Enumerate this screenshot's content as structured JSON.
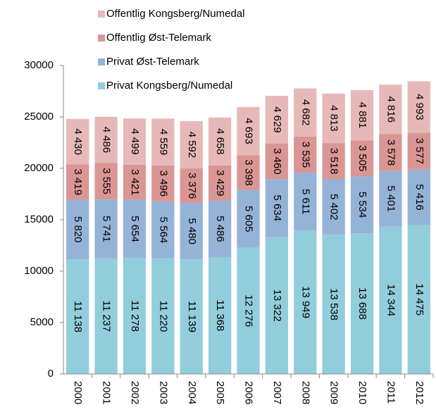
{
  "chart_data": {
    "type": "stacked_bar",
    "categories": [
      "2000",
      "2001",
      "2002",
      "2003",
      "2004",
      "2005",
      "2006",
      "2007",
      "2008",
      "2009",
      "2010",
      "2011",
      "2012"
    ],
    "series": [
      {
        "name": "Privat Kongsberg/Numedal",
        "color": "#92cddc",
        "values": [
          11138,
          11237,
          11278,
          11220,
          11139,
          11368,
          12276,
          13322,
          13949,
          13538,
          13688,
          14344,
          14475
        ],
        "value_labels": [
          "11 138",
          "11 237",
          "11 278",
          "11 220",
          "11 139",
          "11 368",
          "12 276",
          "13 322",
          "13 949",
          "13 538",
          "13 688",
          "14 344",
          "14 475"
        ]
      },
      {
        "name": "Privat Øst-Telemark",
        "color": "#95b3d7",
        "values": [
          5820,
          5741,
          5654,
          5564,
          5480,
          5486,
          5605,
          5634,
          5611,
          5402,
          5534,
          5401,
          5416
        ],
        "value_labels": [
          "5 820",
          "5 741",
          "5 654",
          "5 564",
          "5 480",
          "5 486",
          "5 605",
          "5 634",
          "5 611",
          "5 402",
          "5 534",
          "5 401",
          "5 416"
        ]
      },
      {
        "name": "Offentlig Øst-Telemark",
        "color": "#d99694",
        "values": [
          3419,
          3555,
          3421,
          3496,
          3376,
          3429,
          3398,
          3460,
          3535,
          3518,
          3505,
          3578,
          3577
        ],
        "value_labels": [
          "3 419",
          "3 555",
          "3 421",
          "3 496",
          "3 376",
          "3 429",
          "3 398",
          "3 460",
          "3 535",
          "3 518",
          "3 505",
          "3 578",
          "3 577"
        ]
      },
      {
        "name": "Offentlig Kongsberg/Numedal",
        "color": "#e6b9b8",
        "values": [
          4430,
          4486,
          4499,
          4559,
          4592,
          4658,
          4693,
          4629,
          4682,
          4813,
          4881,
          4816,
          4993
        ],
        "value_labels": [
          "4 430",
          "4 486",
          "4 499",
          "4 559",
          "4 592",
          "4 658",
          "4 693",
          "4 629",
          "4 682",
          "4 813",
          "4 881",
          "4 816",
          "4 993"
        ]
      }
    ],
    "ylim": [
      0,
      30000
    ],
    "yticks": [
      0,
      5000,
      10000,
      15000,
      20000,
      25000,
      30000
    ],
    "grid": false
  }
}
